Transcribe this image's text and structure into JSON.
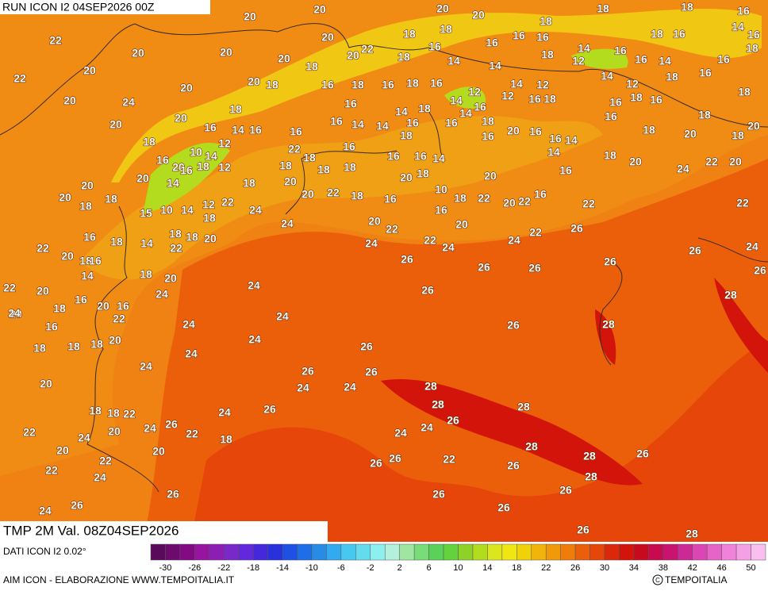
{
  "header": {
    "run": "RUN ICON I2 04SEP2026 00Z"
  },
  "footer": {
    "field": "TMP 2M Val. 08Z04SEP2026",
    "source": "DATI ICON I2 0.02°",
    "credit": "AIM ICON - ELABORAZIONE WWW.TEMPOITALIA.IT",
    "logo": "TEMPOITALIA"
  },
  "colorbar": {
    "lim": [
      -32,
      52
    ],
    "ticks": [
      -30,
      -26,
      -22,
      -18,
      -14,
      -10,
      -6,
      -2,
      2,
      6,
      10,
      14,
      18,
      22,
      26,
      30,
      34,
      38,
      42,
      46,
      50
    ],
    "colors": [
      "#5a0a5a",
      "#6e0a6e",
      "#820a82",
      "#9614a0",
      "#8c1eb4",
      "#7a28c8",
      "#6428dc",
      "#4628dc",
      "#2832dc",
      "#1e50e6",
      "#1e6ee6",
      "#288ce6",
      "#32aaf0",
      "#46c8f0",
      "#64dcf0",
      "#8cf0f0",
      "#b4f0dc",
      "#a0e6a0",
      "#78dc78",
      "#5ad25a",
      "#64d23c",
      "#8cd228",
      "#b4dc1e",
      "#dce61e",
      "#f0e614",
      "#f0d20a",
      "#f0b40a",
      "#f09a0a",
      "#f07d0a",
      "#eb5f0a",
      "#e6460a",
      "#dc280a",
      "#d2140a",
      "#c80a1e",
      "#c80a50",
      "#c8146e",
      "#cc2896",
      "#dc46b4",
      "#e664c8",
      "#f082dc",
      "#f5a0e6",
      "#fabef0"
    ]
  },
  "map_labels": [
    20,
    20,
    20,
    20,
    18,
    18,
    16,
    18,
    22,
    20,
    20,
    20,
    22,
    18,
    18,
    16,
    16,
    16,
    16,
    18,
    16,
    14,
    16,
    18,
    22,
    20,
    20,
    18,
    20,
    18,
    14,
    14,
    18,
    12,
    14,
    16,
    16,
    14,
    16,
    16,
    18,
    20,
    20,
    20,
    18,
    16,
    18,
    16,
    18,
    16,
    12,
    12,
    14,
    12,
    16,
    18,
    14,
    12,
    18,
    24,
    18,
    16,
    14,
    18,
    14,
    16,
    16,
    18,
    16,
    18,
    20,
    20,
    16,
    14,
    16,
    16,
    16,
    14,
    14,
    16,
    16,
    14,
    18,
    16,
    20,
    16,
    16,
    18,
    20,
    20,
    18,
    18,
    12,
    22,
    18,
    16,
    18,
    16,
    14,
    16,
    10,
    14,
    20,
    18,
    18,
    16,
    16,
    14,
    18,
    20,
    22,
    20,
    24,
    14,
    20,
    16,
    18,
    12,
    18,
    20,
    18,
    20,
    18,
    20,
    16,
    20,
    20,
    18,
    18,
    14,
    22,
    20,
    22,
    18,
    16,
    10,
    18,
    22,
    20,
    22,
    16,
    22,
    22,
    15,
    10,
    14,
    12,
    18,
    24,
    24,
    20,
    16,
    20,
    22,
    22,
    26,
    16,
    18,
    14,
    18,
    18,
    20,
    22,
    24,
    22,
    24,
    24,
    26,
    24,
    22,
    20,
    18,
    16,
    18,
    26,
    26,
    26,
    26,
    26,
    20,
    14,
    20,
    24,
    26,
    28,
    22,
    16,
    20,
    16,
    24,
    18,
    20,
    22,
    24,
    16,
    24,
    26,
    28,
    18,
    18,
    18,
    20,
    24,
    26,
    24,
    24,
    26,
    26,
    20,
    24,
    24,
    28,
    18,
    18,
    22,
    26,
    24,
    28,
    26,
    28,
    26,
    24,
    24,
    22,
    20,
    22,
    24,
    24,
    18,
    24,
    20,
    20,
    28,
    22,
    26,
    26,
    22,
    28,
    26,
    22,
    24,
    26,
    28,
    26,
    26,
    26,
    26,
    24,
    26,
    26,
    28
  ]
}
